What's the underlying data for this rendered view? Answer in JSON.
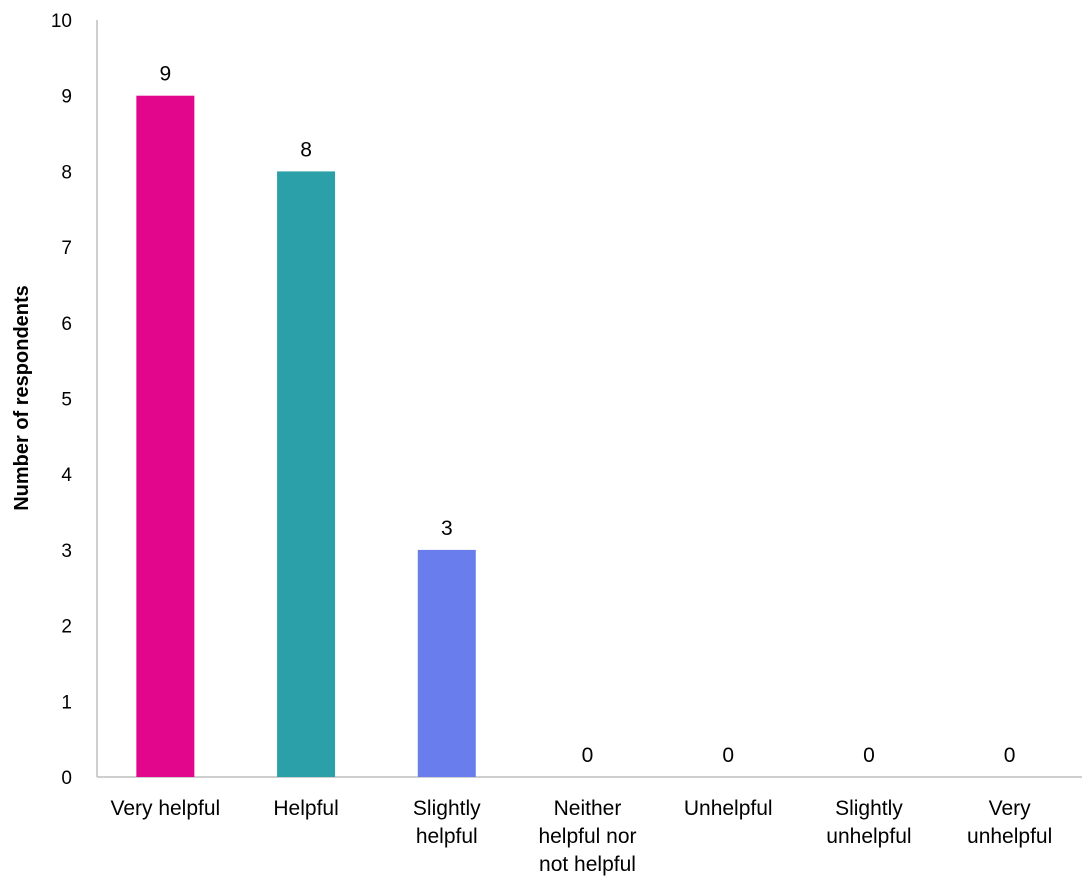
{
  "chart_data": {
    "type": "bar",
    "title": "",
    "xlabel": "",
    "ylabel": "Number of respondents",
    "ylim": [
      0,
      10
    ],
    "yticks": [
      "0",
      "1",
      "2",
      "3",
      "4",
      "5",
      "6",
      "7",
      "8",
      "9",
      "10"
    ],
    "categories": [
      "Very helpful",
      "Helpful",
      "Slightly helpful",
      "Neither helpful nor not helpful",
      "Unhelpful",
      "Slightly unhelpful",
      "Very unhelpful"
    ],
    "category_lines": [
      [
        "Very helpful"
      ],
      [
        "Helpful"
      ],
      [
        "Slightly",
        "helpful"
      ],
      [
        "Neither",
        "helpful nor",
        "not helpful"
      ],
      [
        "Unhelpful"
      ],
      [
        "Slightly",
        "unhelpful"
      ],
      [
        "Very",
        "unhelpful"
      ]
    ],
    "values": [
      9,
      8,
      3,
      0,
      0,
      0,
      0
    ],
    "colors": [
      "#E2068C",
      "#2BA0A8",
      "#6A7DED",
      "#6A7DED",
      "#6A7DED",
      "#6A7DED",
      "#6A7DED"
    ],
    "data_labels": true,
    "grid": false,
    "legend": "none"
  }
}
